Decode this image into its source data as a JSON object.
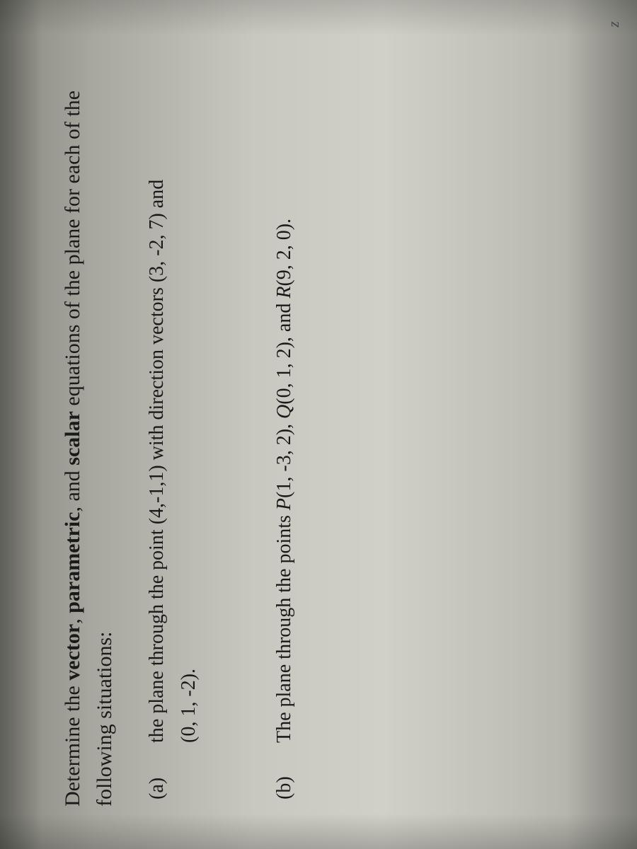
{
  "intro": {
    "prefix": "Determine the ",
    "t1": "vector",
    "sep1": ", ",
    "t2": "parametric",
    "sep2": ", and ",
    "t3": "scalar",
    "suffix": " equations of the plane for each of the following situations:"
  },
  "items": [
    {
      "label": "(a)",
      "line1": "the plane through the point (4,-1,1) with direction vectors (3, -2, 7) and",
      "line2": "(0, 1, -2)."
    },
    {
      "label": "(b)",
      "prefix": "The plane through the points ",
      "p1": "P",
      "v1": "(1, -3, 2), ",
      "p2": "Q",
      "v2": "(0, 1, 2), and ",
      "p3": "R",
      "v3": "(9, 2, 0)."
    }
  ],
  "corner": "z",
  "colors": {
    "text": "#1a1a1a",
    "background_light": "#d0d0c8",
    "background_dark": "#888880"
  },
  "fontsize": {
    "intro": 30,
    "item": 28
  }
}
